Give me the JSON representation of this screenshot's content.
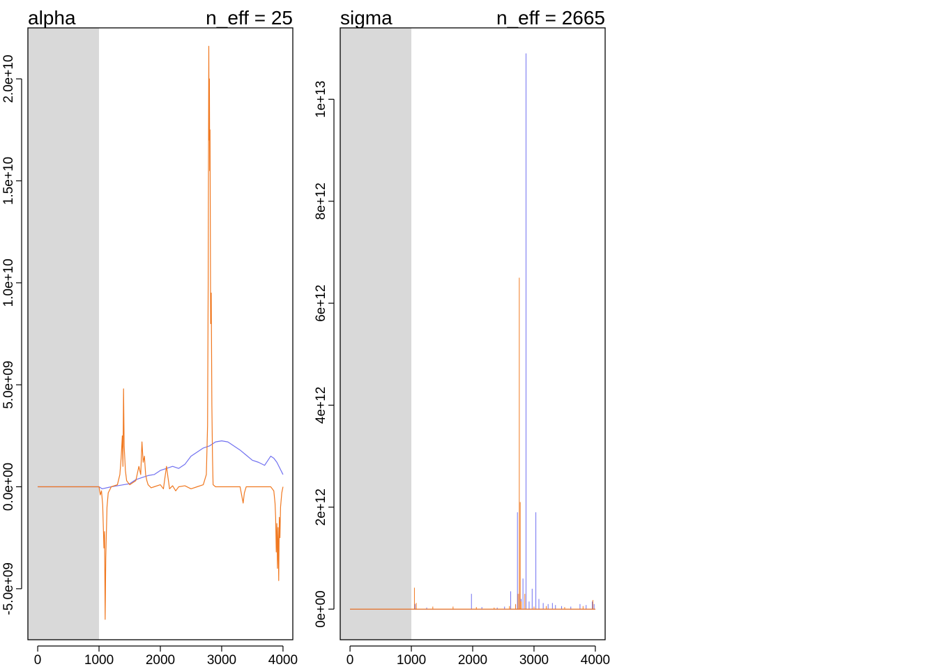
{
  "chart_data": [
    {
      "type": "line",
      "title": "alpha",
      "annotation": "n_eff = 25",
      "xlabel": "",
      "ylabel": "",
      "xlim": [
        -160,
        4160
      ],
      "ylim": [
        -7500000000.0,
        22500000000.0
      ],
      "x_ticks": [
        0,
        1000,
        2000,
        3000,
        4000
      ],
      "x_tick_labels": [
        "0",
        "1000",
        "2000",
        "3000",
        "4000"
      ],
      "y_ticks": [
        -5000000000.0,
        0,
        5000000000.0,
        10000000000.0,
        15000000000.0,
        20000000000.0
      ],
      "y_tick_labels": [
        "-5.0e+09",
        "0.0e+00",
        "5.0e+09",
        "1.0e+10",
        "1.5e+10",
        "2.0e+10"
      ],
      "warmup_region": [
        0,
        1000
      ],
      "warmup_color": "#d9d9d9",
      "series": [
        {
          "color": "#7070f0",
          "x": [
            0,
            1000,
            1050,
            1200,
            1300,
            1400,
            1500,
            1600,
            1700,
            1800,
            1900,
            2000,
            2100,
            2200,
            2300,
            2400,
            2500,
            2600,
            2700,
            2800,
            2900,
            3000,
            3100,
            3200,
            3300,
            3400,
            3500,
            3600,
            3700,
            3800,
            3850,
            3900,
            3950,
            4000
          ],
          "y": [
            0,
            0,
            -100000000.0,
            0,
            50000000.0,
            100000000.0,
            150000000.0,
            350000000.0,
            450000000.0,
            550000000.0,
            600000000.0,
            800000000.0,
            900000000.0,
            1000000000.0,
            900000000.0,
            1100000000.0,
            1500000000.0,
            1700000000.0,
            1900000000.0,
            2000000000.0,
            2200000000.0,
            2250000000.0,
            2200000000.0,
            2000000000.0,
            1800000000.0,
            1550000000.0,
            1300000000.0,
            1200000000.0,
            1050000000.0,
            1500000000.0,
            1400000000.0,
            1200000000.0,
            900000000.0,
            600000000.0
          ]
        },
        {
          "color": "#f07820",
          "x": [
            0,
            900,
            1000,
            1020,
            1040,
            1060,
            1080,
            1090,
            1100,
            1110,
            1130,
            1150,
            1200,
            1300,
            1340,
            1360,
            1380,
            1390,
            1400,
            1410,
            1430,
            1450,
            1500,
            1600,
            1650,
            1680,
            1700,
            1720,
            1740,
            1760,
            1780,
            1800,
            1850,
            1900,
            2000,
            2050,
            2100,
            2150,
            2200,
            2250,
            2300,
            2400,
            2500,
            2600,
            2700,
            2750,
            2770,
            2780,
            2790,
            2795,
            2800,
            2805,
            2810,
            2820,
            2830,
            2840,
            2850,
            2860,
            2900,
            3000,
            3100,
            3200,
            3300,
            3350,
            3370,
            3400,
            3500,
            3600,
            3700,
            3800,
            3850,
            3870,
            3880,
            3890,
            3900,
            3910,
            3920,
            3930,
            3940,
            3950,
            3960,
            3980,
            4000
          ],
          "y": [
            0,
            0,
            0,
            -400000000.0,
            -200000000.0,
            -900000000.0,
            -3000000000.0,
            -2200000000.0,
            -6500000000.0,
            -3500000000.0,
            -1000000000.0,
            -300000000.0,
            0,
            100000000.0,
            600000000.0,
            1400000000.0,
            2500000000.0,
            1000000000.0,
            4800000000.0,
            2000000000.0,
            800000000.0,
            300000000.0,
            100000000.0,
            300000000.0,
            1000000000.0,
            600000000.0,
            2200000000.0,
            1200000000.0,
            1500000000.0,
            600000000.0,
            300000000.0,
            100000000.0,
            -50000000.0,
            0,
            100000000.0,
            -100000000.0,
            1000000000.0,
            -100000000.0,
            50000000.0,
            -200000000.0,
            0,
            50000000.0,
            -100000000.0,
            0,
            100000000.0,
            600000000.0,
            3000000000.0,
            10000000000.0,
            21600000000.0,
            17000000000.0,
            20000000000.0,
            15500000000.0,
            17500000000.0,
            8000000000.0,
            9500000000.0,
            4000000000.0,
            1500000000.0,
            100000000.0,
            0,
            0,
            0,
            0,
            0,
            -800000000.0,
            -300000000.0,
            0,
            0,
            0,
            0,
            0,
            -200000000.0,
            -800000000.0,
            -1500000000.0,
            -3200000000.0,
            -1800000000.0,
            -4000000000.0,
            -2000000000.0,
            -4600000000.0,
            -1500000000.0,
            -2500000000.0,
            -1000000000.0,
            -300000000.0,
            0
          ]
        }
      ]
    },
    {
      "type": "line",
      "title": "sigma",
      "annotation": "n_eff = 2665",
      "xlabel": "",
      "ylabel": "",
      "xlim": [
        -160,
        4160
      ],
      "ylim": [
        -600000000000.0,
        11400000000000.0
      ],
      "x_ticks": [
        0,
        1000,
        2000,
        3000,
        4000
      ],
      "x_tick_labels": [
        "0",
        "1000",
        "2000",
        "3000",
        "4000"
      ],
      "y_ticks": [
        0,
        2000000000000.0,
        4000000000000.0,
        6000000000000.0,
        8000000000000.0,
        10000000000000.0
      ],
      "y_tick_labels": [
        "0e+00",
        "2e+12",
        "4e+12",
        "6e+12",
        "8e+12",
        "1e+13"
      ],
      "warmup_region": [
        0,
        1000
      ],
      "warmup_color": "#d9d9d9",
      "series": [
        {
          "color": "#7070f0",
          "spikes": [
            [
              1060,
              100000000000.0
            ],
            [
              1250,
              30000000000.0
            ],
            [
              1980,
              300000000000.0
            ],
            [
              2150,
              40000000000.0
            ],
            [
              2400,
              30000000000.0
            ],
            [
              2520,
              50000000000.0
            ],
            [
              2620,
              350000000000.0
            ],
            [
              2700,
              80000000000.0
            ],
            [
              2730,
              1900000000000.0
            ],
            [
              2760,
              300000000000.0
            ],
            [
              2790,
              200000000000.0
            ],
            [
              2820,
              600000000000.0
            ],
            [
              2870,
              10900000000000.0
            ],
            [
              2920,
              150000000000.0
            ],
            [
              2970,
              400000000000.0
            ],
            [
              3030,
              1900000000000.0
            ],
            [
              3080,
              200000000000.0
            ],
            [
              3150,
              120000000000.0
            ],
            [
              3230,
              100000000000.0
            ],
            [
              3300,
              120000000000.0
            ],
            [
              3350,
              80000000000.0
            ],
            [
              3450,
              60000000000.0
            ],
            [
              3600,
              50000000000.0
            ],
            [
              3750,
              100000000000.0
            ],
            [
              3850,
              80000000000.0
            ],
            [
              3950,
              150000000000.0
            ],
            [
              3980,
              100000000000.0
            ]
          ]
        },
        {
          "color": "#f07820",
          "spikes": [
            [
              1050,
              420000000000.0
            ],
            [
              1080,
              120000000000.0
            ],
            [
              1350,
              50000000000.0
            ],
            [
              1680,
              50000000000.0
            ],
            [
              2060,
              40000000000.0
            ],
            [
              2350,
              30000000000.0
            ],
            [
              2600,
              60000000000.0
            ],
            [
              2700,
              100000000000.0
            ],
            [
              2740,
              300000000000.0
            ],
            [
              2760,
              6500000000000.0
            ],
            [
              2775,
              2100000000000.0
            ],
            [
              2790,
              150000000000.0
            ],
            [
              2850,
              300000000000.0
            ],
            [
              3000,
              50000000000.0
            ],
            [
              3200,
              60000000000.0
            ],
            [
              3500,
              40000000000.0
            ],
            [
              3800,
              60000000000.0
            ],
            [
              3960,
              180000000000.0
            ]
          ]
        }
      ]
    }
  ]
}
